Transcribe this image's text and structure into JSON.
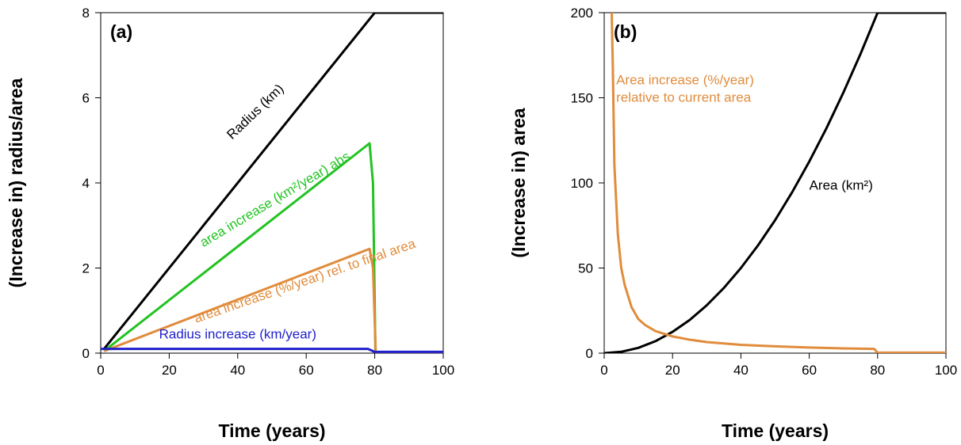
{
  "chart_data": [
    {
      "type": "line",
      "panel_label": "(a)",
      "xlabel": "Time (years)",
      "ylabel": "(Increase in) radius/area",
      "xlim": [
        0,
        100
      ],
      "ylim": [
        0,
        8
      ],
      "xticks": [
        0,
        20,
        40,
        60,
        80,
        100
      ],
      "yticks": [
        0,
        2,
        4,
        6,
        8
      ],
      "grid": false,
      "legend": "none",
      "series": [
        {
          "color": "#000000",
          "x": [
            1,
            80,
            100
          ],
          "y": [
            0.1,
            8,
            8
          ]
        },
        {
          "color": "#22c322",
          "x": [
            1,
            78.5,
            79.5,
            80.2,
            100
          ],
          "y": [
            0.05,
            4.93,
            4.0,
            0,
            0
          ]
        },
        {
          "color": "#e08c3c",
          "x": [
            1,
            78.5,
            79.5,
            80.3,
            100
          ],
          "y": [
            0.05,
            2.45,
            2.0,
            0,
            0
          ]
        },
        {
          "color": "#1f1fcc",
          "x": [
            0,
            78,
            80,
            100
          ],
          "y": [
            0.1,
            0.1,
            0.03,
            0.03
          ]
        }
      ],
      "annotations": [
        {
          "text": "Radius (km)",
          "x": 46,
          "y": 5.6,
          "angle": -44,
          "color": "#000000"
        },
        {
          "text": "area increase (km²/year) abs.",
          "x": 52,
          "y": 3.55,
          "angle": -31,
          "color": "#22c322"
        },
        {
          "text": "area increase (%/year) rel. to final area",
          "x": 60,
          "y": 1.6,
          "angle": -19,
          "color": "#e08c3c"
        },
        {
          "text": "Radius increase (km/year)",
          "x": 40,
          "y": 0.34,
          "angle": 0,
          "color": "#1f1fcc"
        }
      ]
    },
    {
      "type": "line",
      "panel_label": "(b)",
      "xlabel": "Time (years)",
      "ylabel": "(Increase in) area",
      "xlim": [
        0,
        100
      ],
      "ylim": [
        0,
        200
      ],
      "xticks": [
        0,
        20,
        40,
        60,
        80,
        100
      ],
      "yticks": [
        0,
        50,
        100,
        150,
        200
      ],
      "grid": false,
      "legend": "none",
      "series": [
        {
          "color": "#000000",
          "x": [
            0,
            5,
            10,
            15,
            20,
            25,
            30,
            35,
            40,
            45,
            50,
            55,
            60,
            65,
            70,
            75,
            80,
            100
          ],
          "y": [
            0,
            0.8,
            3.1,
            7.0,
            12.5,
            19.5,
            28.1,
            38.3,
            50.0,
            63.3,
            78.1,
            94.5,
            112.5,
            132.0,
            153.1,
            175.8,
            200,
            200
          ]
        },
        {
          "color": "#e08c3c",
          "x": [
            2.2,
            2.5,
            3,
            4,
            5,
            6,
            8,
            10,
            12,
            15,
            20,
            25,
            30,
            40,
            50,
            60,
            70,
            79,
            80,
            100
          ],
          "y": [
            200,
            170,
            110,
            70,
            50,
            40,
            27,
            20,
            16.5,
            13.0,
            9.8,
            7.9,
            6.5,
            4.9,
            4.0,
            3.3,
            2.8,
            2.5,
            0.3,
            0.3
          ]
        }
      ],
      "annotations": [
        {
          "text": "Area increase (%/year)",
          "text2": "relative to current area",
          "x": 3.5,
          "y": 158,
          "color": "#e08c3c"
        },
        {
          "text": "Area (km²)",
          "x": 60,
          "y": 96,
          "color": "#000000"
        }
      ]
    }
  ]
}
